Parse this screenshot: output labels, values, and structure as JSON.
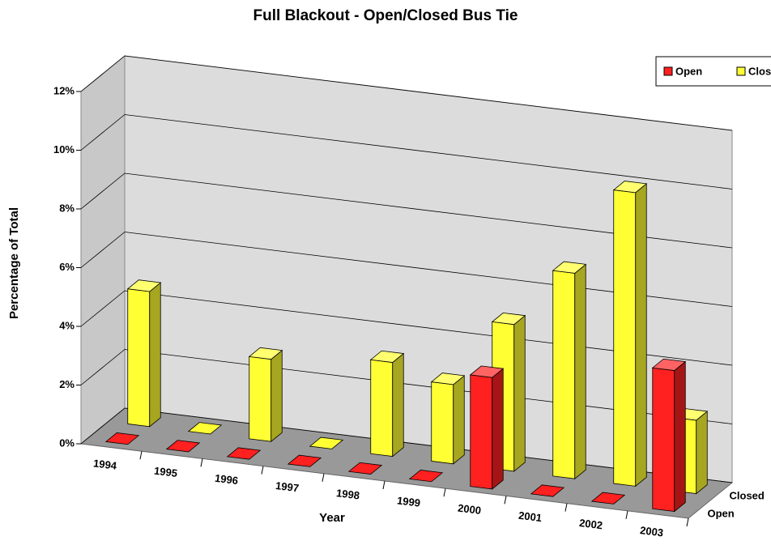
{
  "chart_data": {
    "type": "bar3d",
    "title": "Full Blackout - Open/Closed Bus Tie",
    "x_label": "Year",
    "y_label": "Percentage of Total",
    "categories": [
      "1994",
      "1995",
      "1996",
      "1997",
      "1998",
      "1999",
      "2000",
      "2001",
      "2002",
      "2003"
    ],
    "series": [
      {
        "name": "Open",
        "color": "#ff2020",
        "values": [
          0,
          0,
          0,
          0,
          0,
          0,
          3.8,
          0,
          0,
          4.8
        ]
      },
      {
        "name": "Closed",
        "color": "#ffff33",
        "values": [
          4.6,
          0,
          2.8,
          0,
          3.2,
          2.7,
          5,
          7,
          10,
          2.5
        ]
      }
    ],
    "ylim": [
      0,
      12
    ],
    "yticks": [
      {
        "value": 0,
        "label": "0%"
      },
      {
        "value": 2,
        "label": "2%"
      },
      {
        "value": 4,
        "label": "4%"
      },
      {
        "value": 6,
        "label": "6%"
      },
      {
        "value": 8,
        "label": "8%"
      },
      {
        "value": 10,
        "label": "10%"
      },
      {
        "value": 12,
        "label": "12%"
      }
    ],
    "grid": true,
    "legend": "top-right"
  }
}
